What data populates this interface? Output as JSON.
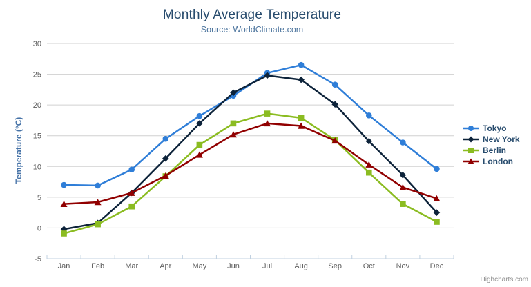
{
  "header": {
    "title": "Monthly Average Temperature",
    "subtitle": "Source: WorldClimate.com"
  },
  "export_menu": {
    "icon": "hamburger-icon"
  },
  "credits": {
    "label": "Highcharts.com"
  },
  "chart_data": {
    "type": "line",
    "title": "Monthly Average Temperature",
    "subtitle": "Source: WorldClimate.com",
    "categories": [
      "Jan",
      "Feb",
      "Mar",
      "Apr",
      "May",
      "Jun",
      "Jul",
      "Aug",
      "Sep",
      "Oct",
      "Nov",
      "Dec"
    ],
    "series": [
      {
        "name": "Tokyo",
        "color": "#2f7ed8",
        "marker": "circle",
        "values": [
          7.0,
          6.9,
          9.5,
          14.5,
          18.2,
          21.5,
          25.2,
          26.5,
          23.3,
          18.3,
          13.9,
          9.6
        ]
      },
      {
        "name": "New York",
        "color": "#0d233a",
        "marker": "diamond",
        "values": [
          -0.2,
          0.8,
          5.7,
          11.3,
          17.0,
          22.0,
          24.8,
          24.1,
          20.1,
          14.1,
          8.6,
          2.5
        ]
      },
      {
        "name": "Berlin",
        "color": "#8bbc21",
        "marker": "square",
        "values": [
          -0.9,
          0.6,
          3.5,
          8.4,
          13.5,
          17.0,
          18.6,
          17.9,
          14.3,
          9.0,
          3.9,
          1.0
        ]
      },
      {
        "name": "London",
        "color": "#910000",
        "marker": "triangle",
        "values": [
          3.9,
          4.2,
          5.7,
          8.5,
          11.9,
          15.2,
          17.0,
          16.6,
          14.2,
          10.3,
          6.6,
          4.8
        ]
      }
    ],
    "xlabel": "",
    "ylabel": "Temperature (°C)",
    "ylim": [
      -5,
      30
    ],
    "yticks": [
      30,
      25,
      20,
      15,
      10,
      5,
      0,
      -5
    ],
    "grid": true,
    "legend_position": "right"
  },
  "theme": {
    "title_color": "#274b6d",
    "subtitle_color": "#4d759e",
    "axis_label_color": "#606060",
    "y_axis_title_color": "#4572a7",
    "gridline_color": "#d0d0d0",
    "axis_line_color": "#c0d0e0",
    "legend_text_color": "#274b6d",
    "credits_color": "#909090"
  }
}
